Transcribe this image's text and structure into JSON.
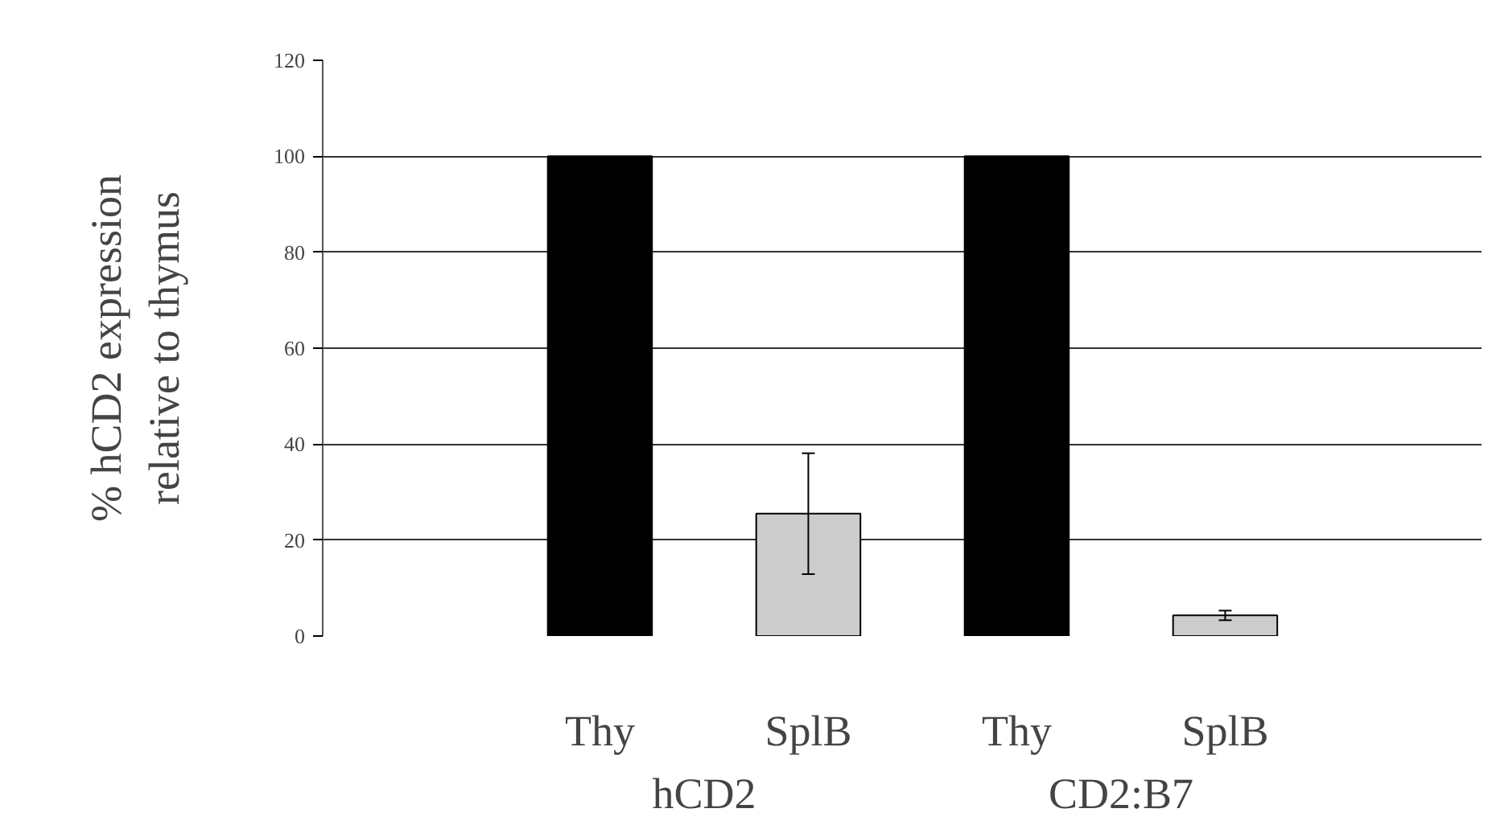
{
  "chart_data": {
    "type": "bar",
    "categories": [
      "Thy",
      "SplB",
      "Thy",
      "SplB"
    ],
    "values": [
      100,
      25.5,
      100,
      4.3
    ],
    "colors": [
      "#000000",
      "#cccccc",
      "#000000",
      "#cccccc"
    ],
    "errors": [
      null,
      12.6,
      null,
      1
    ],
    "ylabel": "% hCD2 expression\nrelative to thymus",
    "ylim": [
      0,
      120
    ],
    "yticks": [
      0,
      20,
      40,
      60,
      80,
      100,
      120
    ],
    "grid": "y",
    "annotations": [
      "hCD2",
      "CD2:B7"
    ]
  }
}
